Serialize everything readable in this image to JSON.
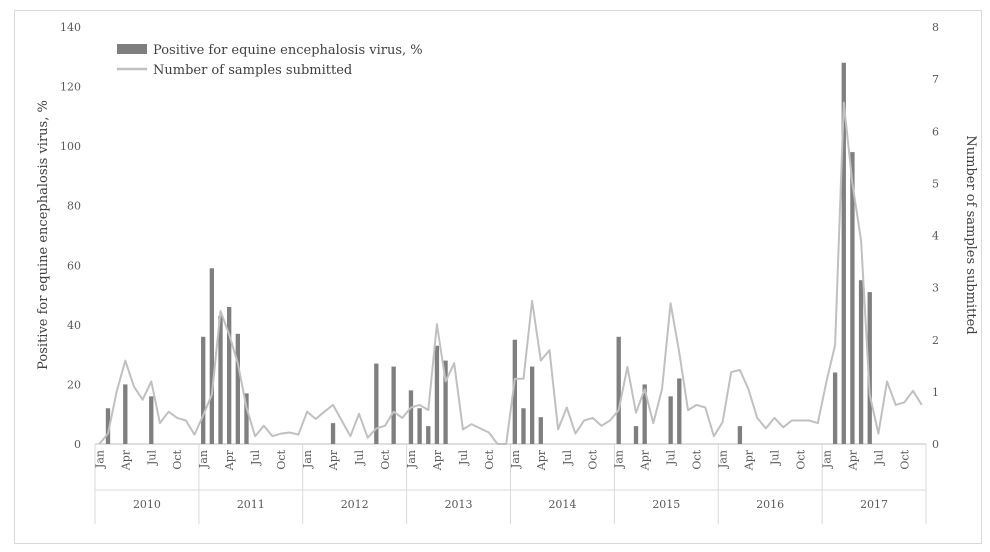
{
  "chart_data": {
    "type": "bar+line",
    "legend": [
      {
        "name": "Positive for equine encephalosis virus, %",
        "kind": "bar",
        "color": "#7f7f7f"
      },
      {
        "name": "Number of samples submitted",
        "kind": "line",
        "color": "#c0c0c0"
      }
    ],
    "legend_position": "top-left",
    "ylabel_left": "Positive for equine encephalosis virus, %",
    "ylabel_right": "Number of samples submitted",
    "ylim_left": [
      0,
      140
    ],
    "ylim_right": [
      0,
      8
    ],
    "yticks_left": [
      "0",
      "20",
      "40",
      "60",
      "80",
      "100",
      "120",
      "140"
    ],
    "yticks_right": [
      "0",
      "1",
      "2",
      "3",
      "4",
      "5",
      "6",
      "7",
      "8"
    ],
    "month_tick_labels": [
      "Jan",
      "Apr",
      "Jul",
      "Oct"
    ],
    "years": [
      "2010",
      "2011",
      "2012",
      "2013",
      "2014",
      "2015",
      "2016",
      "2017"
    ],
    "months_per_year": 12,
    "grid": false,
    "series": [
      {
        "name": "Positive for equine encephalosis virus, %",
        "axis": "left",
        "values": [
          0,
          12,
          0,
          20,
          0,
          0,
          16,
          0,
          0,
          0,
          0,
          0,
          36,
          59,
          43,
          46,
          37,
          17,
          0,
          0,
          0,
          0,
          0,
          0,
          0,
          0,
          0,
          7,
          0,
          0,
          0,
          0,
          27,
          0,
          26,
          0,
          18,
          12,
          6,
          33,
          28,
          0,
          0,
          0,
          0,
          0,
          0,
          0,
          35,
          12,
          26,
          9,
          0,
          0,
          0,
          0,
          0,
          0,
          0,
          0,
          36,
          0,
          6,
          20,
          0,
          0,
          16,
          22,
          0,
          0,
          0,
          0,
          0,
          0,
          6,
          0,
          0,
          0,
          0,
          0,
          0,
          0,
          0,
          0,
          0,
          24,
          128,
          98,
          55,
          51,
          0,
          0,
          0,
          0,
          0,
          0
        ]
      },
      {
        "name": "Number of samples submitted",
        "axis": "right",
        "values": [
          0.0,
          0.2,
          1.0,
          1.6,
          1.1,
          0.85,
          1.2,
          0.4,
          0.62,
          0.5,
          0.45,
          0.18,
          0.55,
          0.95,
          2.55,
          2.1,
          1.55,
          0.7,
          0.15,
          0.35,
          0.15,
          0.2,
          0.22,
          0.18,
          0.62,
          0.48,
          0.62,
          0.75,
          0.45,
          0.15,
          0.58,
          0.12,
          0.3,
          0.35,
          0.62,
          0.5,
          0.7,
          0.75,
          0.65,
          2.3,
          1.2,
          1.55,
          0.28,
          0.38,
          0.3,
          0.22,
          0.0,
          0.0,
          1.25,
          1.25,
          2.75,
          1.6,
          1.8,
          0.28,
          0.7,
          0.2,
          0.45,
          0.5,
          0.35,
          0.45,
          0.65,
          1.48,
          0.6,
          1.05,
          0.4,
          1.05,
          2.7,
          1.75,
          0.65,
          0.75,
          0.7,
          0.15,
          0.42,
          1.38,
          1.42,
          1.05,
          0.5,
          0.3,
          0.5,
          0.32,
          0.45,
          0.45,
          0.45,
          0.4,
          1.2,
          1.9,
          6.55,
          5.0,
          3.9,
          0.95,
          0.2,
          1.2,
          0.75,
          0.8,
          1.02,
          0.75
        ]
      }
    ]
  }
}
